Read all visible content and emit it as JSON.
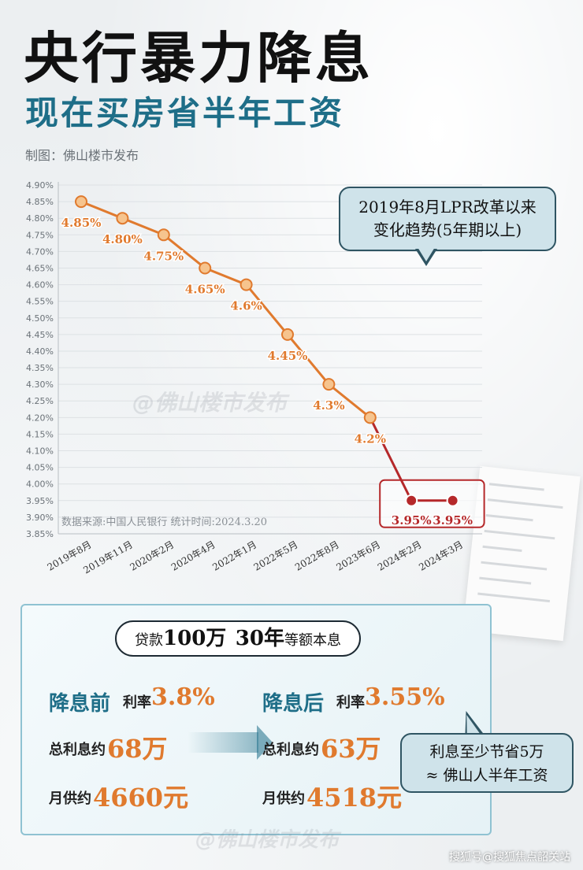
{
  "header": {
    "title": "央行暴力降息",
    "subtitle": "现在买房省半年工资",
    "credit": "制图：佛山楼市发布"
  },
  "watermark": "@佛山楼市发布",
  "chart_data": {
    "type": "line",
    "title": "",
    "categories": [
      "2019年8月",
      "2019年11月",
      "2020年2月",
      "2020年4月",
      "2022年1月",
      "2022年5月",
      "2022年8月",
      "2023年6月",
      "2024年2月",
      "2024年3月"
    ],
    "series": [
      {
        "values": [
          4.85,
          4.8,
          4.75,
          4.65,
          4.6,
          4.45,
          4.3,
          4.2,
          3.95,
          3.95
        ],
        "point_labels": [
          "4.85%",
          "4.80%",
          "4.75%",
          "4.65%",
          "4.6%",
          "4.45%",
          "4.3%",
          "4.2%",
          "3.95%",
          "3.95%"
        ],
        "color": "#e07a2e",
        "highlight_color": "#b5282a",
        "highlight_indices": [
          8,
          9
        ]
      }
    ],
    "yticks": [
      "4.90%",
      "4.85%",
      "4.80%",
      "4.75%",
      "4.70%",
      "4.65%",
      "4.60%",
      "4.55%",
      "4.50%",
      "4.45%",
      "4.40%",
      "4.35%",
      "4.30%",
      "4.25%",
      "4.20%",
      "4.15%",
      "4.10%",
      "4.05%",
      "4.00%",
      "3.95%",
      "3.90%",
      "3.85%"
    ],
    "ylim": [
      3.85,
      4.9
    ],
    "grid": true,
    "source_note": "数据来源:中国人民银行   统计时间:2024.3.20",
    "callout": [
      "2019年8月LPR改革以来",
      "变化趋势(5年期以上)"
    ]
  },
  "loan": {
    "prefix": "贷款",
    "amount": "100万",
    "term": "30年",
    "method": "等额本息"
  },
  "before": {
    "label": "降息前",
    "rate_label": "利率",
    "rate": "3.8%",
    "interest_label": "总利息约",
    "interest": "68万",
    "monthly_label": "月供约",
    "monthly": "4660元"
  },
  "after": {
    "label": "降息后",
    "rate_label": "利率",
    "rate": "3.55%",
    "interest_label": "总利息约",
    "interest": "63万",
    "monthly_label": "月供约",
    "monthly": "4518元"
  },
  "savings": {
    "line1": "利息至少节省5万",
    "line2": "≈ 佛山人半年工资"
  },
  "footer": "搜狐号@搜狐焦点韶关站",
  "colors": {
    "accent": "#1e6e88",
    "line": "#e07a2e",
    "highlight": "#b5282a",
    "value": "#e07a2e"
  }
}
